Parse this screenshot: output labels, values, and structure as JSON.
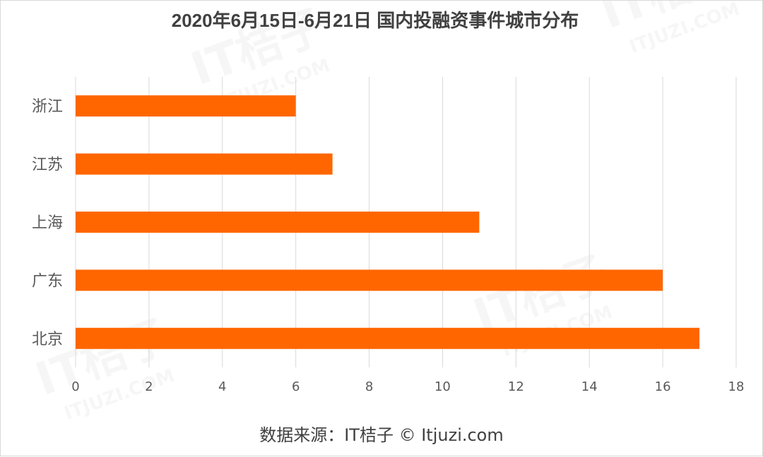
{
  "chart_data": {
    "type": "bar",
    "orientation": "horizontal",
    "title": "2020年6月15日-6月21日 国内投融资事件城市分布",
    "categories": [
      "浙江",
      "江苏",
      "上海",
      "广东",
      "北京"
    ],
    "values": [
      6,
      7,
      11,
      16,
      17
    ],
    "xlim": [
      0,
      18
    ],
    "xticks": [
      0,
      2,
      4,
      6,
      8,
      10,
      12,
      14,
      16,
      18
    ],
    "grid": true,
    "legend": "none",
    "bar_color": "#ff6600"
  },
  "source_text": "数据来源：IT桔子 © Itjuzi.com",
  "watermark": {
    "brand": "IT桔子",
    "url": "ITJUZI.COM"
  }
}
